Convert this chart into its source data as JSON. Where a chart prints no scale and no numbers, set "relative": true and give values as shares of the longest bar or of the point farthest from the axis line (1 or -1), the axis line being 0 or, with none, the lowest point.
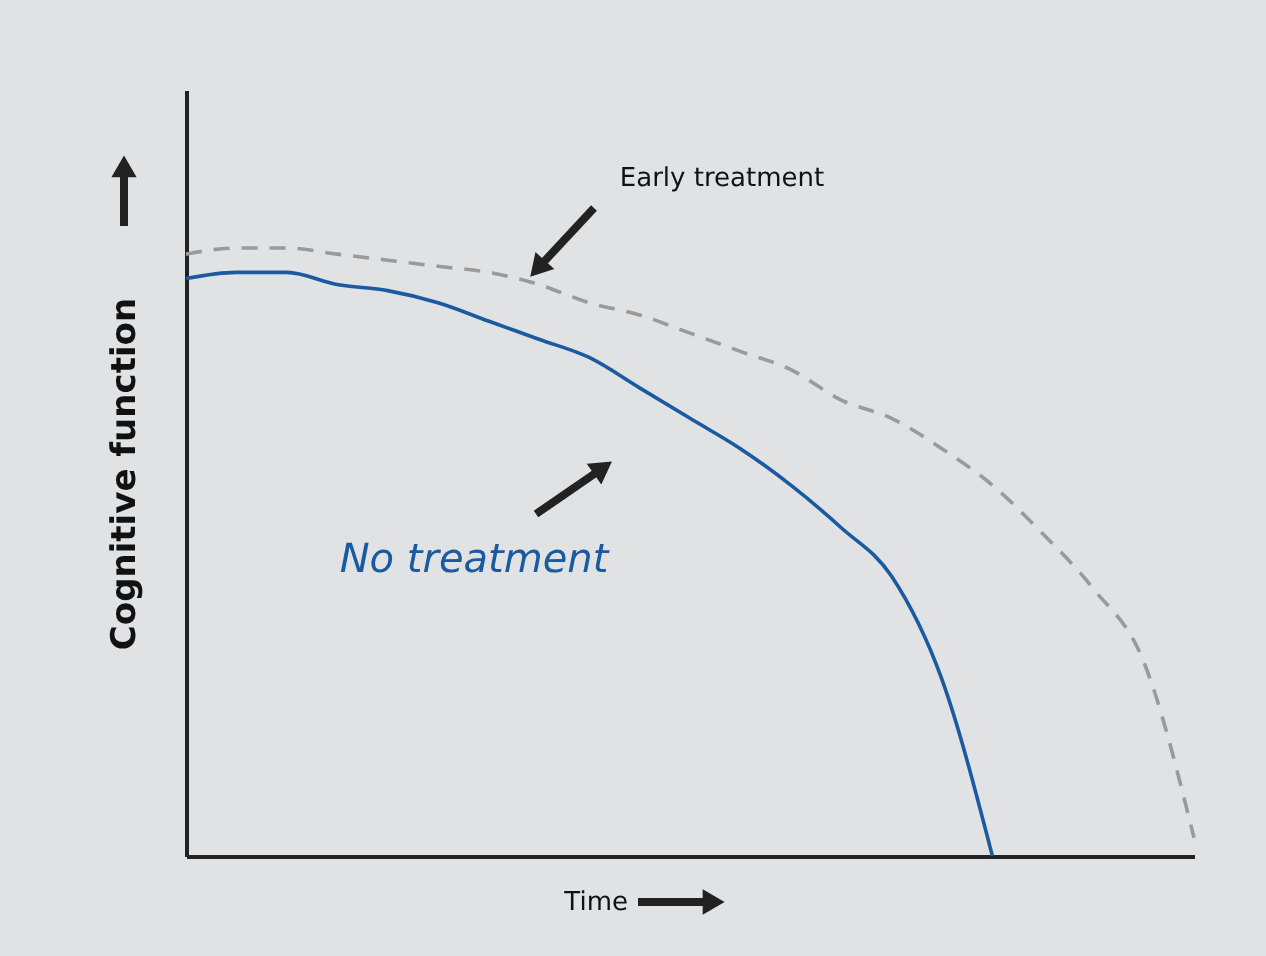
{
  "chart_data": {
    "type": "line",
    "relative": true,
    "xlabel": "Time",
    "ylabel": "Cognitive function",
    "categories": [
      null,
      null,
      null,
      null,
      null,
      null,
      null,
      null,
      null,
      null,
      null,
      null,
      null,
      null,
      null,
      null,
      null,
      null,
      null,
      null,
      null
    ],
    "series": [
      {
        "name": "No treatment",
        "color": "#1a5aa0",
        "line_style": "solid",
        "values": [
          0.95,
          0.96,
          0.96,
          0.94,
          0.93,
          0.91,
          0.88,
          0.85,
          0.82,
          0.77,
          0.72,
          0.67,
          0.61,
          0.54,
          0.46,
          0.29,
          0.0,
          null,
          null,
          null,
          null
        ]
      },
      {
        "name": "Early treatment",
        "color": "#9a9a9a",
        "line_style": "dashed",
        "values": [
          0.99,
          1.0,
          1.0,
          0.99,
          0.98,
          0.97,
          0.96,
          0.94,
          0.91,
          0.89,
          0.86,
          0.83,
          0.8,
          0.75,
          0.72,
          0.67,
          0.61,
          0.53,
          0.44,
          0.32,
          0.03
        ]
      }
    ],
    "grid": false,
    "marker": "none"
  }
}
